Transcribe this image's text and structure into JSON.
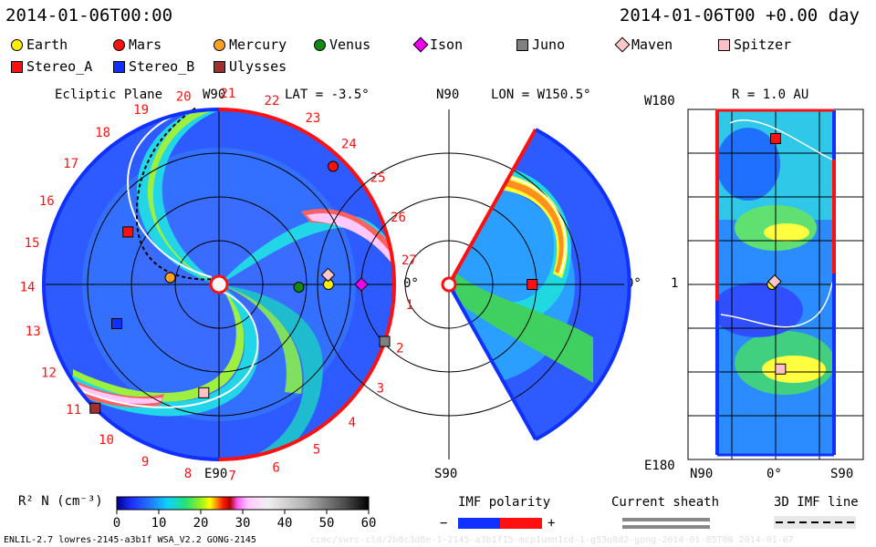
{
  "header": {
    "left_time": "2014-01-06T00:00",
    "right_time": "2014-01-06T00 +0.00 day"
  },
  "legend": [
    {
      "name": "Earth",
      "shape": "circle",
      "color": "#ffee00"
    },
    {
      "name": "Mars",
      "shape": "circle",
      "color": "#ff1010"
    },
    {
      "name": "Mercury",
      "shape": "circle",
      "color": "#ffa020"
    },
    {
      "name": "Venus",
      "shape": "circle",
      "color": "#108a10"
    },
    {
      "name": "Ison",
      "shape": "diamond",
      "color": "#ee00ee"
    },
    {
      "name": "Juno",
      "shape": "square",
      "color": "#808080"
    },
    {
      "name": "Maven",
      "shape": "diamond",
      "color": "#ffc8c8"
    },
    {
      "name": "Spitzer",
      "shape": "square",
      "color": "#ffc0c8"
    },
    {
      "name": "Stereo_A",
      "shape": "square",
      "color": "#ff1010"
    },
    {
      "name": "Stereo_B",
      "shape": "square",
      "color": "#1030ff"
    },
    {
      "name": "Ulysses",
      "shape": "square",
      "color": "#a03030"
    }
  ],
  "panels": {
    "ecliptic": {
      "title": "Ecliptic Plane",
      "top_label": "W90",
      "bottom_label": "E90",
      "lat": "LAT = -3.5°",
      "right_label": "0°"
    },
    "meridional": {
      "top_label": "N90",
      "bottom_label": "S90",
      "lon": "LON = W150.5°",
      "right_label": "0°"
    },
    "radial": {
      "r": "R = 1.0 AU",
      "top_left": "W180",
      "bottom_left": "E180",
      "mid_left": "1",
      "bottom_n": "N90",
      "bottom_mid": "0°",
      "bottom_s": "S90"
    }
  },
  "carrington_labels": [
    "1",
    "2",
    "3",
    "4",
    "5",
    "6",
    "7",
    "8",
    "9",
    "10",
    "11",
    "12",
    "13",
    "14",
    "15",
    "16",
    "17",
    "18",
    "19",
    "20",
    "21",
    "22",
    "23",
    "24",
    "25",
    "26",
    "27"
  ],
  "colorbar": {
    "label": "R² N (cm⁻³)",
    "ticks": [
      "0",
      "10",
      "20",
      "30",
      "40",
      "50",
      "60"
    ],
    "min": 0,
    "max": 60
  },
  "keys": {
    "imf_polarity": "IMF polarity",
    "minus": "−",
    "plus": "+",
    "current_sheath": "Current sheath",
    "imf_line": "3D IMF line"
  },
  "footer": {
    "left": "ENLIL-2.7 lowres-2145-a3b1f WSA_V2.2 GONG-2145",
    "right": "ccmc/swrc-cld/2b8c3d8e-1-2145-a3b1f15-mcp1umn1cd-1-g53q8d2-gong-2014-01-05T00    2014-01-07"
  },
  "chart_data": [
    {
      "type": "heatmap",
      "title": "Ecliptic Plane",
      "projection": "polar",
      "quantity": "R² N (cm⁻³)",
      "range": [
        0,
        60
      ],
      "objects": [
        {
          "name": "Earth",
          "lon_deg": 0,
          "r_au": 1.0
        },
        {
          "name": "Maven",
          "lon_deg": 5,
          "r_au": 1.0
        },
        {
          "name": "Ison",
          "lon_deg": 0,
          "r_au": 1.3
        },
        {
          "name": "Venus",
          "lon_deg": -2,
          "r_au": 0.73
        },
        {
          "name": "Mercury",
          "lon_deg": 172,
          "r_au": 0.45
        },
        {
          "name": "Mars",
          "lon_deg": 46,
          "r_au": 1.5
        },
        {
          "name": "Stereo_A",
          "lon_deg": 150,
          "r_au": 0.96
        },
        {
          "name": "Stereo_B",
          "lon_deg": 201,
          "r_au": 1.0
        },
        {
          "name": "Juno",
          "lon_deg": -19,
          "r_au": 1.6
        },
        {
          "name": "Spitzer",
          "lon_deg": 262,
          "r_au": 1.0
        },
        {
          "name": "Ulysses",
          "lon_deg": 225,
          "r_au": 1.6
        }
      ]
    },
    {
      "type": "heatmap",
      "title": "LON = W150.5°",
      "projection": "meridional",
      "objects": [
        {
          "name": "Stereo_A",
          "lat_deg": 0,
          "r_au": 0.96
        }
      ]
    },
    {
      "type": "heatmap",
      "title": "R = 1.0 AU",
      "projection": "lat-lon",
      "objects": [
        {
          "name": "Stereo_A",
          "lat_deg": 0,
          "lon_deg": 150
        },
        {
          "name": "Earth",
          "lat_deg": -3.5,
          "lon_deg": 0
        },
        {
          "name": "Maven",
          "lat_deg": -1,
          "lon_deg": 3
        },
        {
          "name": "Spitzer",
          "lat_deg": 5,
          "lon_deg": -87
        }
      ]
    }
  ]
}
